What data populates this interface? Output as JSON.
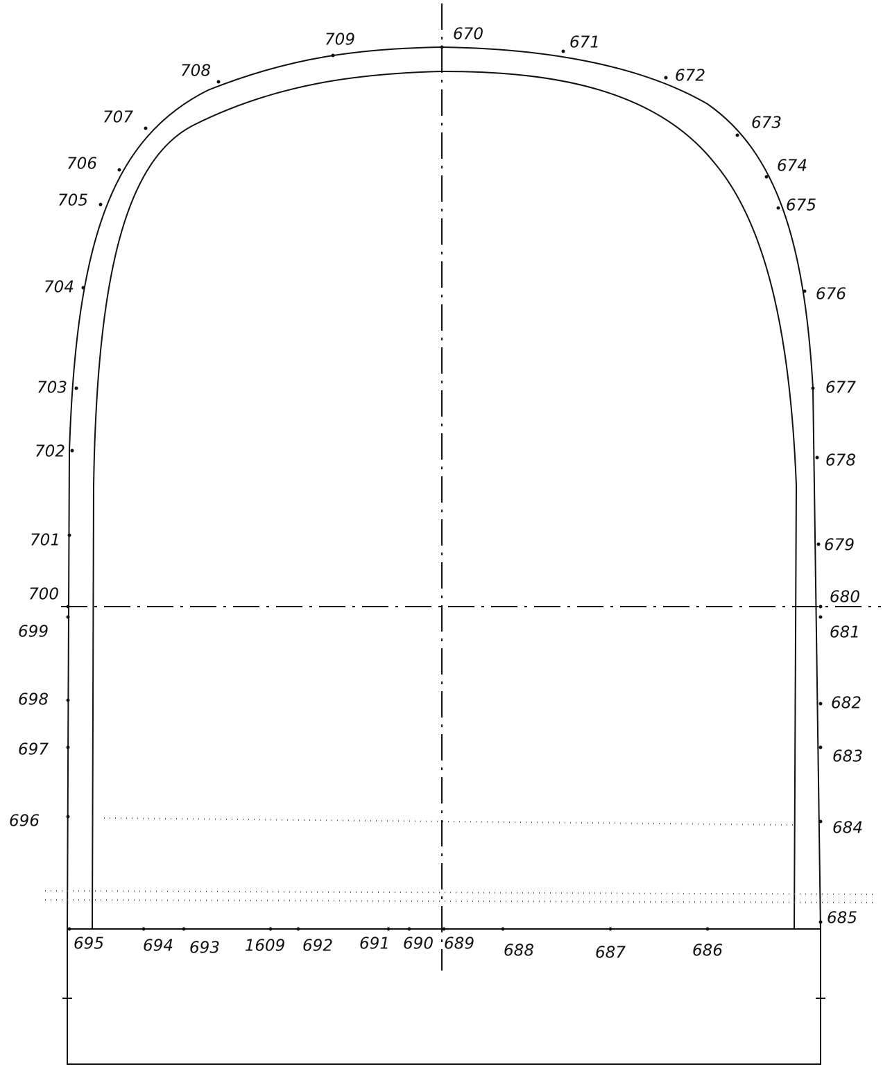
{
  "labels": [
    "670",
    "671",
    "672",
    "673",
    "674",
    "675",
    "676",
    "677",
    "678",
    "679",
    "680",
    "681",
    "682",
    "683",
    "684",
    "685",
    "686",
    "687",
    "688",
    "689",
    "690",
    "691",
    "692",
    "1609",
    "693",
    "694",
    "695",
    "696",
    "697",
    "698",
    "699",
    "700",
    "701",
    "702",
    "703",
    "704",
    "705",
    "706",
    "707",
    "708",
    "709"
  ]
}
